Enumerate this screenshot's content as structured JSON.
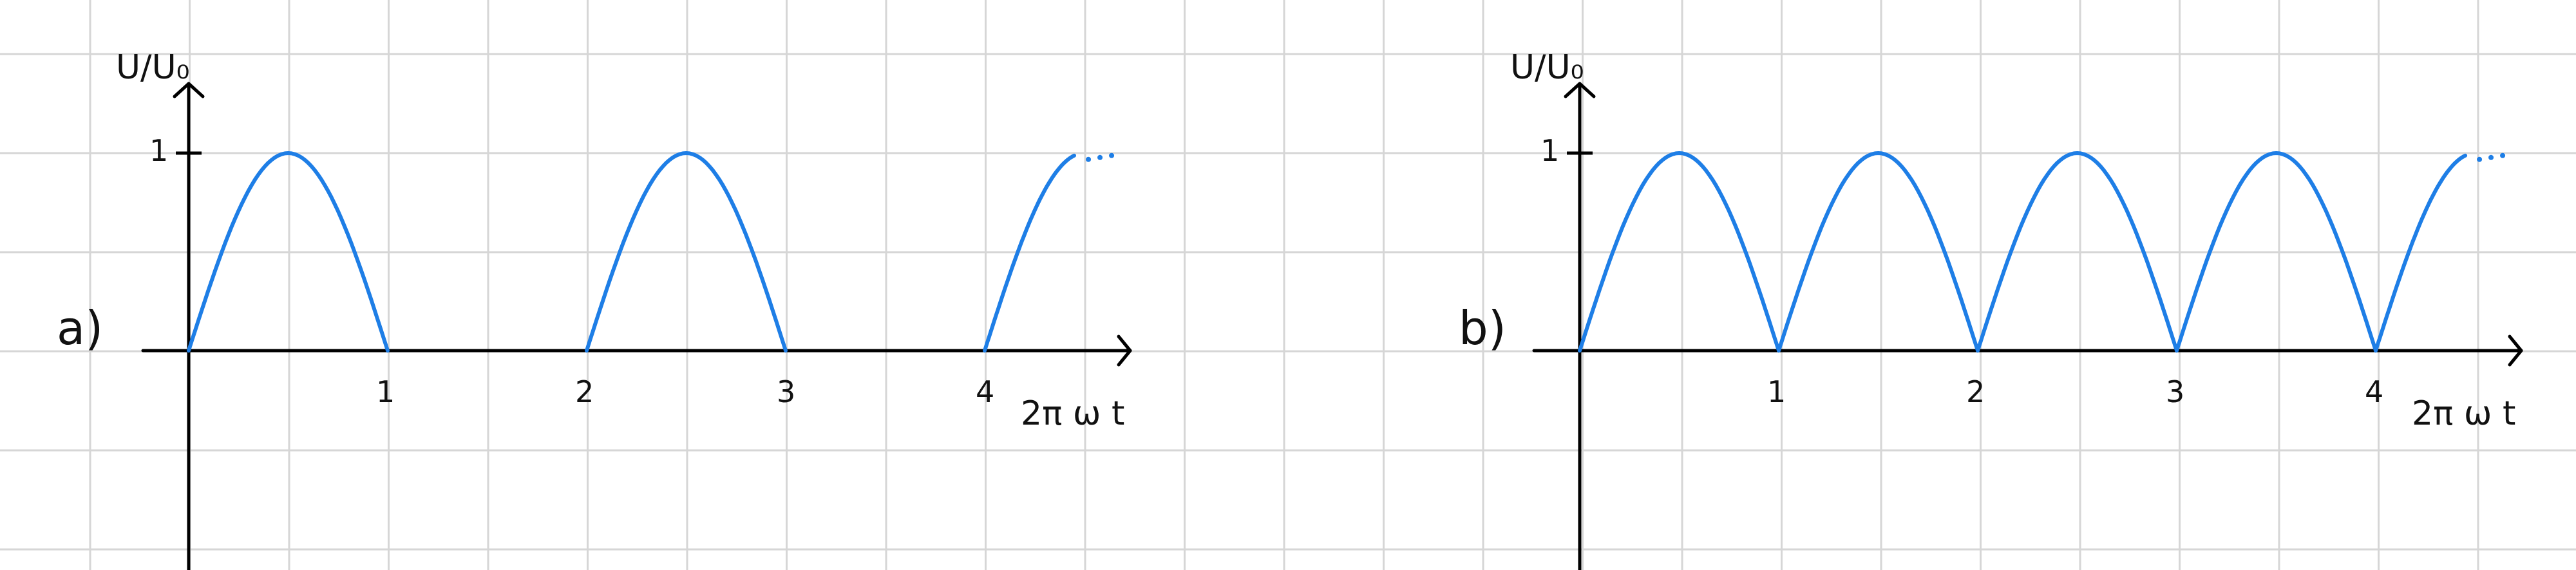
{
  "colors": {
    "grid": "#d6d6d6",
    "axis": "#000000",
    "curve": "#1e7ee6"
  },
  "chart_data": [
    {
      "type": "line",
      "panel_label": "a)",
      "xlabel": "2π ω t",
      "ylabel": "U/U₀",
      "x_ticks": [
        "1",
        "2",
        "3",
        "4"
      ],
      "y_ticks": [
        "1"
      ],
      "xlim": [
        0,
        4.7
      ],
      "ylim": [
        -1.1,
        1.4
      ],
      "series": [
        {
          "description_type": "half-wave rectified sine",
          "segments": [
            {
              "x_start": 0,
              "x_end": 1,
              "peak": 1
            },
            {
              "x_start": 2,
              "x_end": 3,
              "peak": 1
            },
            {
              "x_start": 4,
              "x_end": 4.45,
              "peak": 1,
              "continues": true
            }
          ]
        }
      ],
      "continuation_marker": "...",
      "grid": true
    },
    {
      "type": "line",
      "panel_label": "b)",
      "xlabel": "2π ω t",
      "ylabel": "U/U₀",
      "x_ticks": [
        "1",
        "2",
        "3",
        "4"
      ],
      "y_ticks": [
        "1"
      ],
      "xlim": [
        0,
        4.7
      ],
      "ylim": [
        -1.1,
        1.4
      ],
      "series": [
        {
          "description_type": "full-wave rectified sine",
          "segments": [
            {
              "x_start": 0,
              "x_end": 1,
              "peak": 1
            },
            {
              "x_start": 1,
              "x_end": 2,
              "peak": 1
            },
            {
              "x_start": 2,
              "x_end": 3,
              "peak": 1
            },
            {
              "x_start": 3,
              "x_end": 4,
              "peak": 1
            },
            {
              "x_start": 4,
              "x_end": 4.45,
              "peak": 1,
              "continues": true
            }
          ]
        }
      ],
      "continuation_marker": "...",
      "grid": true
    }
  ]
}
